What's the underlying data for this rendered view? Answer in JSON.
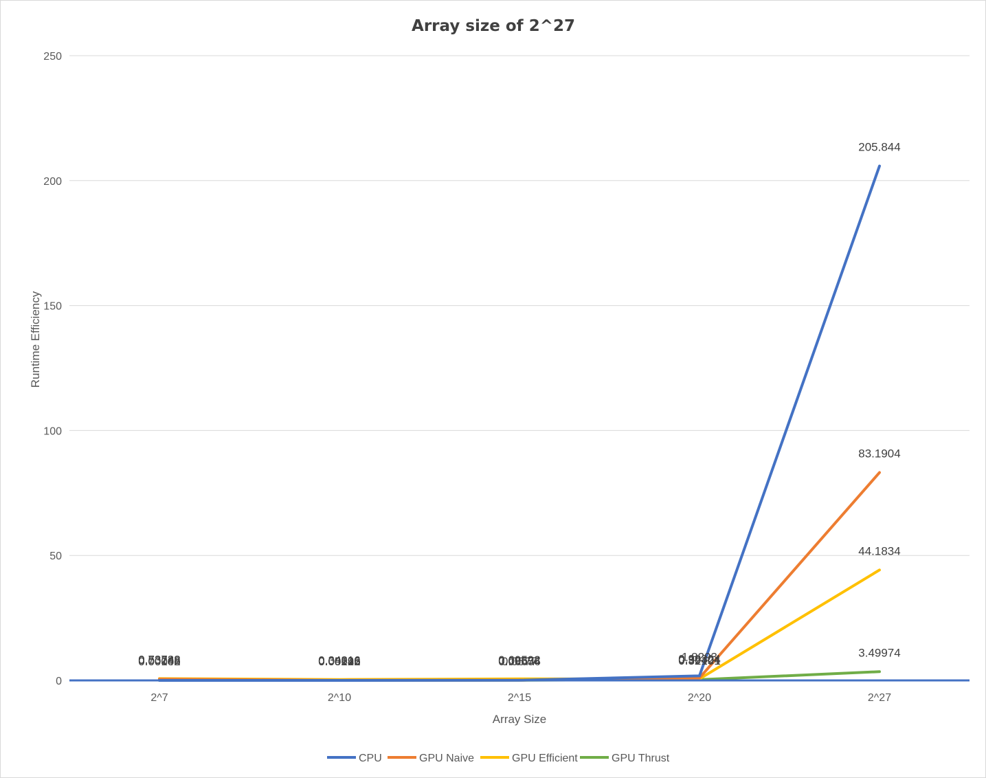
{
  "chart_data": {
    "type": "line",
    "title": "Array size of 2^27",
    "xlabel": "Array Size",
    "ylabel": "Runtime Efficiency",
    "categories": [
      "2^7",
      "2^10",
      "2^15",
      "2^20",
      "2^27"
    ],
    "ylim": [
      0,
      250
    ],
    "yticks": [
      0,
      50,
      100,
      150,
      200,
      250
    ],
    "grid": true,
    "legend": "bottom",
    "series": [
      {
        "name": "CPU",
        "color": "#4472c4",
        "values": [
          0.00048,
          0.00243,
          0.0577,
          1.8293,
          205.844
        ],
        "labels": [
          "0.00048",
          "0.00243",
          "0.0577",
          "1.8293",
          "205.844"
        ]
      },
      {
        "name": "GPU Naive",
        "color": "#ed7d31",
        "values": [
          0.53248,
          0.05126,
          0.09574,
          0.98304,
          83.1904
        ],
        "labels": [
          "0.53248",
          "0.05126",
          "0.09574",
          "0.98304",
          "83.1904"
        ]
      },
      {
        "name": "GPU Efficient",
        "color": "#ffc000",
        "values": [
          0.73728,
          0.34816,
          0.60592,
          0.59424,
          44.1834
        ],
        "labels": [
          "0.73728",
          "0.34816",
          "0.60592",
          "0.59424",
          "44.1834"
        ]
      },
      {
        "name": "GPU Thrust",
        "color": "#70ad47",
        "values": [
          0.00102,
          0.00992,
          0.06656,
          0.32101,
          3.49974
        ],
        "labels": [
          "0.00102",
          "0.00992",
          "0.06656",
          "0.32101",
          "3.49974"
        ]
      }
    ]
  }
}
